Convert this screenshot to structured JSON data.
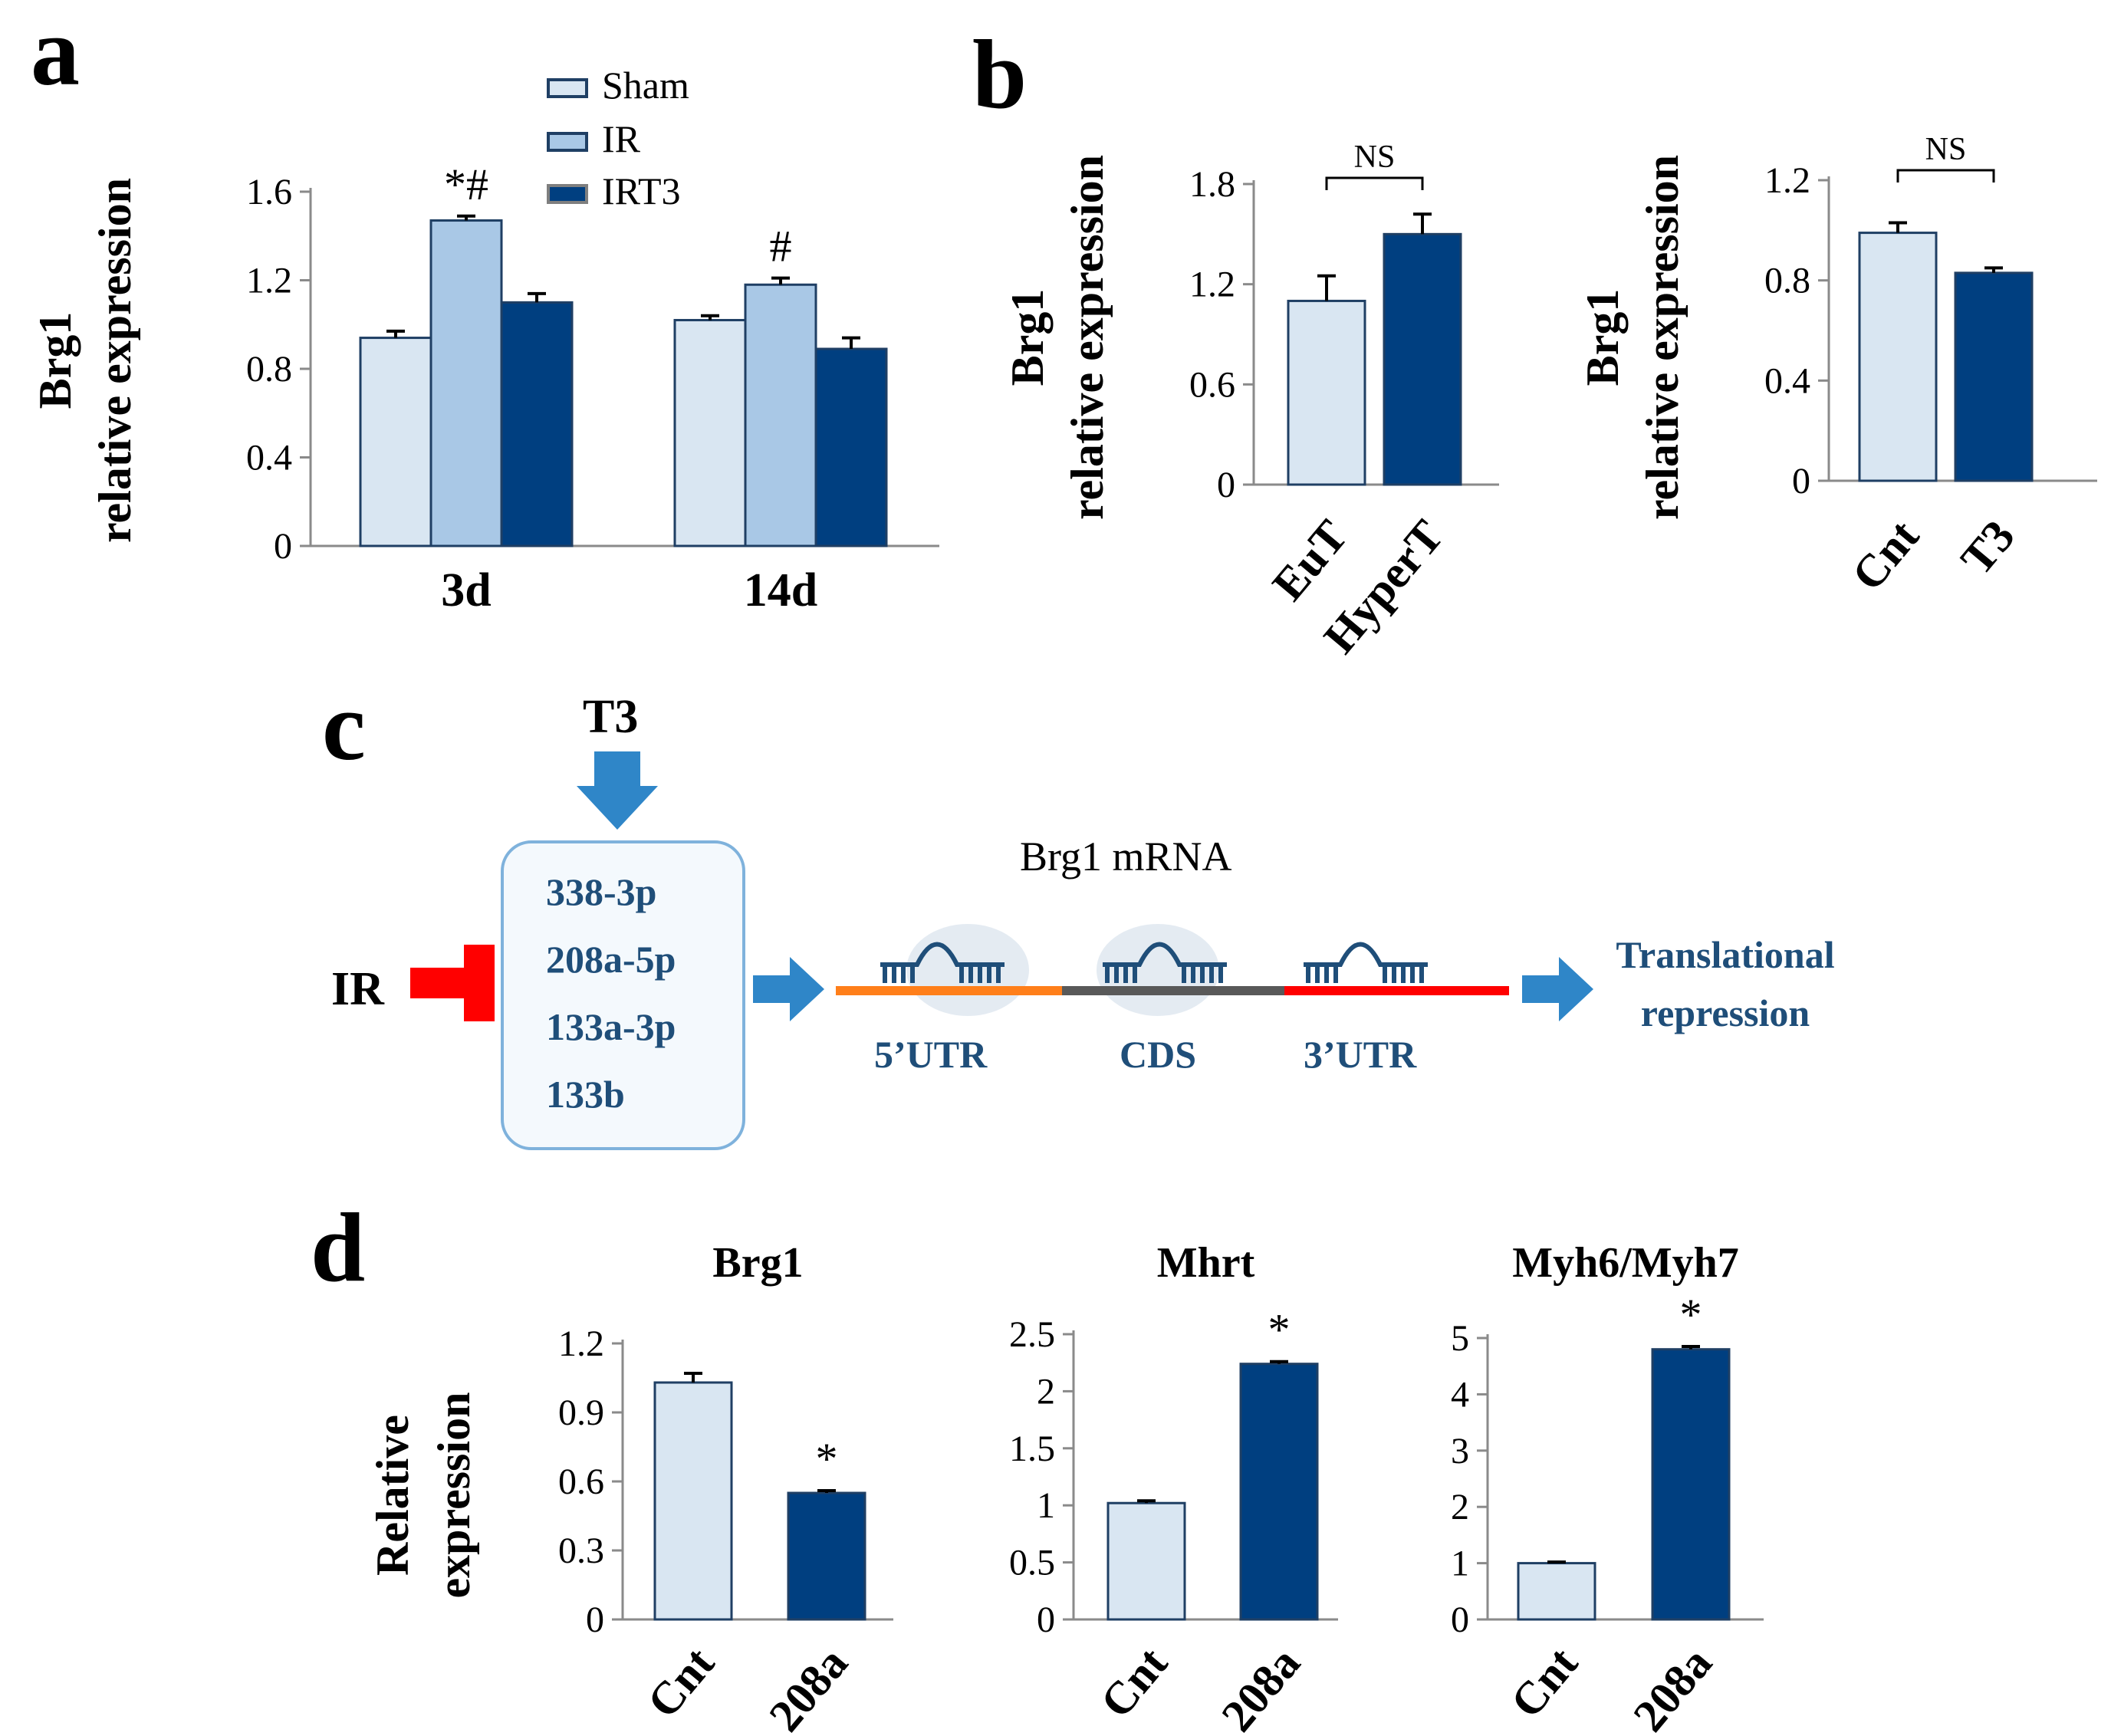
{
  "colors": {
    "sham": "#d9e6f2",
    "ir": "#a9c8e6",
    "dark": "#003f80",
    "outline": "#1f3f64",
    "diagram_text": "#1f4e79",
    "arrow": "#2f86c8",
    "inhibit": "#ff0000",
    "utr5": "#ff7f1a",
    "cds": "#595959",
    "utr3": "#ff0000",
    "box_border": "#7fb2dc"
  },
  "panels": {
    "a": "a",
    "b": "b",
    "c": "c",
    "d": "d"
  },
  "chart_data": [
    {
      "id": "a",
      "type": "bar",
      "title": "",
      "ylabel": "Brg1 relative expression",
      "ylabel_lines": [
        "Brg1",
        "relative expression"
      ],
      "ylim": [
        0,
        1.6
      ],
      "yticks": [
        "0",
        "0.4",
        "0.8",
        "1.2",
        "1.6"
      ],
      "categories": [
        "3d",
        "14d"
      ],
      "legend": {
        "position": "top",
        "entries": [
          "Sham",
          "IR",
          "IRT3"
        ]
      },
      "series": [
        {
          "name": "Sham",
          "values": [
            0.94,
            1.02
          ],
          "errors": [
            0.03,
            0.02
          ]
        },
        {
          "name": "IR",
          "values": [
            1.47,
            1.18
          ],
          "errors": [
            0.02,
            0.03
          ],
          "annotations": [
            "*#",
            "#"
          ]
        },
        {
          "name": "IRT3",
          "values": [
            1.1,
            0.89
          ],
          "errors": [
            0.04,
            0.05
          ]
        }
      ],
      "grid": false
    },
    {
      "id": "b-left",
      "type": "bar",
      "title": "",
      "ylabel": "Brg1 relative expression",
      "ylabel_lines": [
        "Brg1",
        "relative expression"
      ],
      "ylim": [
        0,
        1.8
      ],
      "yticks": [
        "0",
        "0.6",
        "1.2",
        "1.8"
      ],
      "categories": [
        "EuT",
        "HyperT"
      ],
      "values": [
        1.1,
        1.5
      ],
      "errors": [
        0.15,
        0.12
      ],
      "bracket": "NS",
      "grid": false
    },
    {
      "id": "b-right",
      "type": "bar",
      "title": "",
      "ylabel": "Brg1 relative expression",
      "ylabel_lines": [
        "Brg1",
        "relative expression"
      ],
      "ylim": [
        0,
        1.2
      ],
      "yticks": [
        "0",
        "0.4",
        "0.8",
        "1.2"
      ],
      "categories": [
        "Cnt",
        "T3"
      ],
      "values": [
        0.99,
        0.83
      ],
      "errors": [
        0.04,
        0.02
      ],
      "bracket": "NS",
      "grid": false
    },
    {
      "id": "d-brg1",
      "type": "bar",
      "title": "Brg1",
      "ylabel": "Relative expression",
      "ylabel_lines": [
        "Relative",
        "expression"
      ],
      "ylim": [
        0,
        1.2
      ],
      "yticks": [
        "0",
        "0.3",
        "0.6",
        "0.9",
        "1.2"
      ],
      "categories": [
        "Cnt",
        "208a"
      ],
      "values": [
        1.03,
        0.55
      ],
      "errors": [
        0.04,
        0.01
      ],
      "annotations": [
        "",
        "*"
      ],
      "grid": false
    },
    {
      "id": "d-mhrt",
      "type": "bar",
      "title": "Mhrt",
      "ylabel": "",
      "ylim": [
        0,
        2.5
      ],
      "yticks": [
        "0",
        "0.5",
        "1",
        "1.5",
        "2",
        "2.5"
      ],
      "categories": [
        "Cnt",
        "208a"
      ],
      "values": [
        1.02,
        2.24
      ],
      "errors": [
        0.02,
        0.02
      ],
      "annotations": [
        "",
        "*"
      ],
      "grid": false
    },
    {
      "id": "d-myh",
      "type": "bar",
      "title": "Myh6/Myh7",
      "ylabel": "",
      "ylim": [
        0,
        5
      ],
      "yticks": [
        "0",
        "1",
        "2",
        "3",
        "4",
        "5"
      ],
      "categories": [
        "Cnt",
        "208a"
      ],
      "values": [
        1.0,
        4.8
      ],
      "errors": [
        0.02,
        0.05
      ],
      "annotations": [
        "",
        "*"
      ],
      "grid": false
    }
  ],
  "diagram": {
    "t3": "T3",
    "ir": "IR",
    "mirnas": [
      "338-3p",
      "208a-5p",
      "133a-3p",
      "133b"
    ],
    "mrna_title": "Brg1 mRNA",
    "regions": [
      "5’UTR",
      "CDS",
      "3’UTR"
    ],
    "outcome_lines": [
      "Translational",
      "repression"
    ]
  }
}
